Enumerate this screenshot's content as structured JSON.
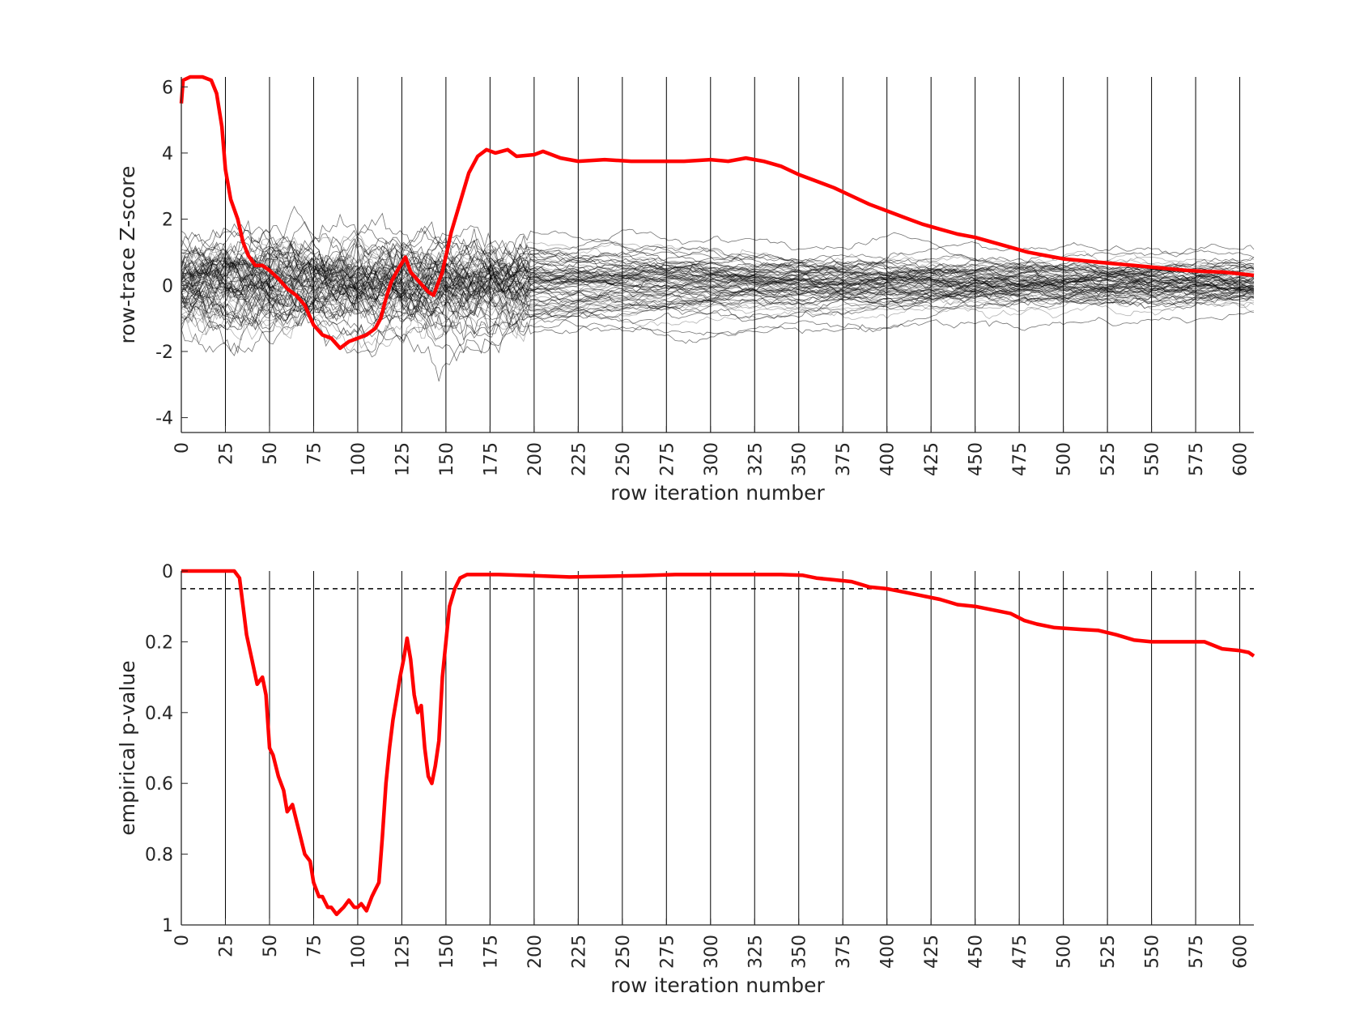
{
  "figure": {
    "background": "#ffffff",
    "axis_color": "#262626",
    "highlight_color": "#ff0000",
    "null_color": "#000000"
  },
  "chart_data": [
    {
      "type": "line",
      "xlabel": "row iteration number",
      "ylabel": "row-trace Z-score",
      "xlim": [
        0,
        608
      ],
      "ylim": [
        -4.45,
        6.3
      ],
      "xticks": [
        0,
        25,
        50,
        75,
        100,
        125,
        150,
        175,
        200,
        225,
        250,
        275,
        300,
        325,
        350,
        375,
        400,
        425,
        450,
        475,
        500,
        525,
        550,
        575,
        600
      ],
      "yticks": [
        -4,
        -2,
        0,
        2,
        4,
        6
      ],
      "vertical_gridlines": true,
      "observed_series": {
        "color": "#ff0000",
        "points": [
          [
            0,
            5.5
          ],
          [
            1,
            6.2
          ],
          [
            5,
            6.3
          ],
          [
            12,
            6.3
          ],
          [
            17,
            6.2
          ],
          [
            20,
            5.8
          ],
          [
            23,
            4.8
          ],
          [
            25,
            3.5
          ],
          [
            28,
            2.6
          ],
          [
            32,
            2.0
          ],
          [
            35,
            1.3
          ],
          [
            38,
            0.9
          ],
          [
            42,
            0.6
          ],
          [
            46,
            0.6
          ],
          [
            50,
            0.45
          ],
          [
            55,
            0.2
          ],
          [
            60,
            -0.1
          ],
          [
            65,
            -0.3
          ],
          [
            70,
            -0.6
          ],
          [
            75,
            -1.2
          ],
          [
            80,
            -1.5
          ],
          [
            85,
            -1.6
          ],
          [
            90,
            -1.9
          ],
          [
            95,
            -1.7
          ],
          [
            100,
            -1.6
          ],
          [
            105,
            -1.5
          ],
          [
            110,
            -1.3
          ],
          [
            113,
            -1.0
          ],
          [
            116,
            -0.4
          ],
          [
            119,
            0.1
          ],
          [
            123,
            0.5
          ],
          [
            127,
            0.85
          ],
          [
            130,
            0.4
          ],
          [
            135,
            0.1
          ],
          [
            140,
            -0.2
          ],
          [
            143,
            -0.3
          ],
          [
            148,
            0.4
          ],
          [
            153,
            1.6
          ],
          [
            158,
            2.5
          ],
          [
            163,
            3.4
          ],
          [
            168,
            3.9
          ],
          [
            173,
            4.1
          ],
          [
            178,
            4.0
          ],
          [
            185,
            4.1
          ],
          [
            190,
            3.9
          ],
          [
            200,
            3.95
          ],
          [
            205,
            4.05
          ],
          [
            215,
            3.85
          ],
          [
            225,
            3.75
          ],
          [
            240,
            3.8
          ],
          [
            255,
            3.75
          ],
          [
            270,
            3.75
          ],
          [
            285,
            3.75
          ],
          [
            300,
            3.8
          ],
          [
            310,
            3.75
          ],
          [
            320,
            3.85
          ],
          [
            330,
            3.75
          ],
          [
            340,
            3.6
          ],
          [
            350,
            3.35
          ],
          [
            360,
            3.15
          ],
          [
            370,
            2.95
          ],
          [
            380,
            2.7
          ],
          [
            390,
            2.45
          ],
          [
            400,
            2.25
          ],
          [
            410,
            2.05
          ],
          [
            420,
            1.85
          ],
          [
            430,
            1.7
          ],
          [
            440,
            1.55
          ],
          [
            450,
            1.45
          ],
          [
            460,
            1.3
          ],
          [
            470,
            1.15
          ],
          [
            480,
            1.0
          ],
          [
            490,
            0.9
          ],
          [
            500,
            0.8
          ],
          [
            510,
            0.75
          ],
          [
            520,
            0.7
          ],
          [
            530,
            0.65
          ],
          [
            540,
            0.6
          ],
          [
            550,
            0.55
          ],
          [
            560,
            0.5
          ],
          [
            570,
            0.45
          ],
          [
            580,
            0.42
          ],
          [
            590,
            0.4
          ],
          [
            600,
            0.35
          ],
          [
            608,
            0.3
          ]
        ]
      },
      "null_series": {
        "color": "#000000",
        "count": 80,
        "spread_by_x": [
          [
            0,
            1.0
          ],
          [
            50,
            1.0
          ],
          [
            100,
            1.0
          ],
          [
            150,
            1.05
          ],
          [
            200,
            0.85
          ],
          [
            300,
            0.7
          ],
          [
            400,
            0.55
          ],
          [
            500,
            0.45
          ],
          [
            608,
            0.4
          ]
        ]
      }
    },
    {
      "type": "line",
      "xlabel": "row iteration number",
      "ylabel": "empirical p-value",
      "xlim": [
        0,
        608
      ],
      "ylim": [
        0,
        1
      ],
      "y_reversed": true,
      "xticks": [
        0,
        25,
        50,
        75,
        100,
        125,
        150,
        175,
        200,
        225,
        250,
        275,
        300,
        325,
        350,
        375,
        400,
        425,
        450,
        475,
        500,
        525,
        550,
        575,
        600
      ],
      "yticks": [
        0,
        0.2,
        0.4,
        0.6,
        0.8,
        1
      ],
      "yticklabels": [
        "0",
        "0.2",
        "0.4",
        "0.6",
        "0.8",
        "1"
      ],
      "vertical_gridlines": true,
      "threshold": 0.05,
      "series": [
        {
          "color": "#ff0000",
          "points": [
            [
              0,
              0.0
            ],
            [
              10,
              0.0
            ],
            [
              20,
              0.0
            ],
            [
              30,
              0.0
            ],
            [
              33,
              0.02
            ],
            [
              35,
              0.1
            ],
            [
              37,
              0.18
            ],
            [
              40,
              0.25
            ],
            [
              43,
              0.32
            ],
            [
              46,
              0.3
            ],
            [
              48,
              0.35
            ],
            [
              50,
              0.5
            ],
            [
              52,
              0.52
            ],
            [
              55,
              0.58
            ],
            [
              58,
              0.62
            ],
            [
              60,
              0.68
            ],
            [
              63,
              0.66
            ],
            [
              66,
              0.72
            ],
            [
              70,
              0.8
            ],
            [
              73,
              0.82
            ],
            [
              75,
              0.88
            ],
            [
              78,
              0.92
            ],
            [
              80,
              0.92
            ],
            [
              83,
              0.95
            ],
            [
              85,
              0.95
            ],
            [
              88,
              0.97
            ],
            [
              90,
              0.96
            ],
            [
              92,
              0.95
            ],
            [
              95,
              0.93
            ],
            [
              98,
              0.95
            ],
            [
              100,
              0.95
            ],
            [
              102,
              0.94
            ],
            [
              105,
              0.96
            ],
            [
              108,
              0.92
            ],
            [
              110,
              0.9
            ],
            [
              112,
              0.88
            ],
            [
              114,
              0.75
            ],
            [
              116,
              0.6
            ],
            [
              118,
              0.5
            ],
            [
              120,
              0.42
            ],
            [
              122,
              0.36
            ],
            [
              124,
              0.3
            ],
            [
              126,
              0.25
            ],
            [
              128,
              0.19
            ],
            [
              130,
              0.25
            ],
            [
              132,
              0.35
            ],
            [
              134,
              0.4
            ],
            [
              136,
              0.38
            ],
            [
              138,
              0.5
            ],
            [
              140,
              0.58
            ],
            [
              142,
              0.6
            ],
            [
              144,
              0.55
            ],
            [
              146,
              0.48
            ],
            [
              148,
              0.3
            ],
            [
              150,
              0.2
            ],
            [
              152,
              0.1
            ],
            [
              155,
              0.05
            ],
            [
              158,
              0.02
            ],
            [
              162,
              0.01
            ],
            [
              170,
              0.01
            ],
            [
              180,
              0.01
            ],
            [
              200,
              0.013
            ],
            [
              220,
              0.017
            ],
            [
              240,
              0.015
            ],
            [
              260,
              0.013
            ],
            [
              280,
              0.01
            ],
            [
              300,
              0.01
            ],
            [
              320,
              0.01
            ],
            [
              340,
              0.01
            ],
            [
              352,
              0.012
            ],
            [
              360,
              0.02
            ],
            [
              370,
              0.025
            ],
            [
              380,
              0.03
            ],
            [
              390,
              0.045
            ],
            [
              400,
              0.05
            ],
            [
              410,
              0.06
            ],
            [
              420,
              0.07
            ],
            [
              430,
              0.08
            ],
            [
              440,
              0.095
            ],
            [
              450,
              0.1
            ],
            [
              460,
              0.11
            ],
            [
              470,
              0.12
            ],
            [
              478,
              0.14
            ],
            [
              485,
              0.15
            ],
            [
              495,
              0.16
            ],
            [
              510,
              0.165
            ],
            [
              520,
              0.168
            ],
            [
              530,
              0.18
            ],
            [
              540,
              0.195
            ],
            [
              550,
              0.2
            ],
            [
              560,
              0.2
            ],
            [
              570,
              0.2
            ],
            [
              580,
              0.2
            ],
            [
              590,
              0.22
            ],
            [
              600,
              0.225
            ],
            [
              605,
              0.23
            ],
            [
              608,
              0.24
            ]
          ]
        }
      ]
    }
  ]
}
